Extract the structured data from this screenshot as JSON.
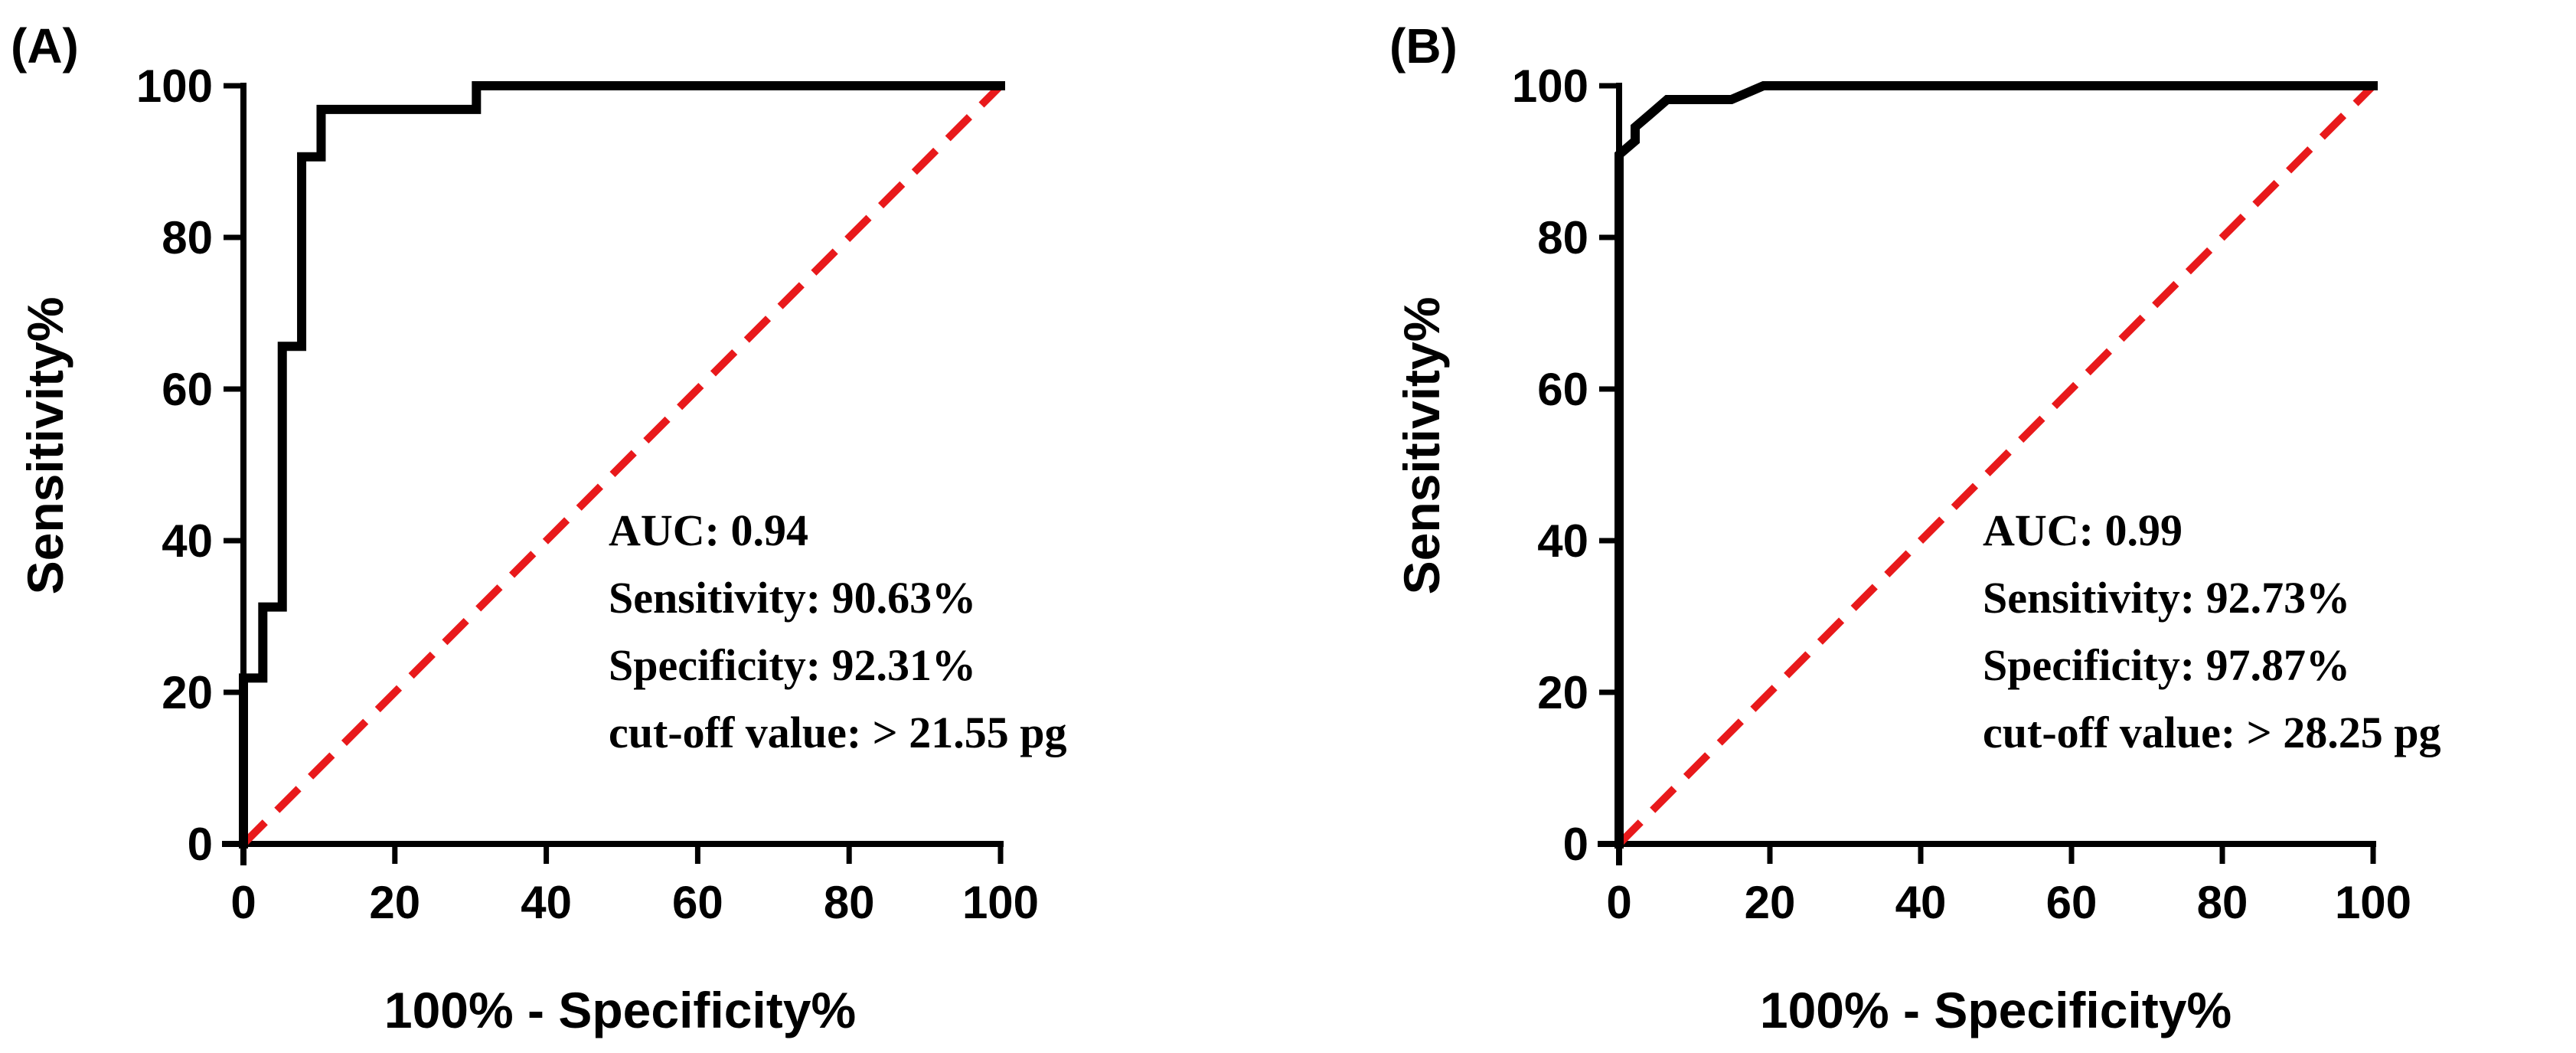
{
  "chart_data": [
    {
      "type": "line",
      "panel_label": "(A)",
      "xlabel": "100% - Specificity%",
      "ylabel": "Sensitivity%",
      "xlim": [
        0,
        100
      ],
      "ylim": [
        0,
        100
      ],
      "xticks": [
        0,
        20,
        40,
        60,
        80,
        100
      ],
      "yticks": [
        0,
        20,
        40,
        60,
        80,
        100
      ],
      "grid": false,
      "series": [
        {
          "name": "ROC curve",
          "color": "#000000",
          "style": "solid",
          "step": true,
          "x": [
            0,
            0,
            2.56,
            2.56,
            5.13,
            5.13,
            7.69,
            7.69,
            10.26,
            10.26,
            30.77,
            30.77,
            100
          ],
          "y": [
            0,
            21.88,
            21.88,
            31.25,
            31.25,
            65.63,
            65.63,
            90.63,
            90.63,
            96.88,
            96.88,
            100,
            100
          ]
        },
        {
          "name": "Reference line",
          "color": "#e8191b",
          "style": "dashed",
          "x": [
            0,
            100
          ],
          "y": [
            0,
            100
          ]
        }
      ],
      "annotations": [
        "AUC: 0.94",
        "Sensitivity: 90.63%",
        "Specificity: 92.31%",
        "cut-off value: > 21.55 pg"
      ]
    },
    {
      "type": "line",
      "panel_label": "(B)",
      "xlabel": "100% - Specificity%",
      "ylabel": "Sensitivity%",
      "xlim": [
        0,
        100
      ],
      "ylim": [
        0,
        100
      ],
      "xticks": [
        0,
        20,
        40,
        60,
        80,
        100
      ],
      "yticks": [
        0,
        20,
        40,
        60,
        80,
        100
      ],
      "grid": false,
      "series": [
        {
          "name": "ROC curve",
          "color": "#000000",
          "style": "solid",
          "step": false,
          "x": [
            0,
            0,
            2.13,
            2.13,
            4.26,
            4.26,
            6.38,
            6.38,
            14.89,
            19.15,
            100
          ],
          "y": [
            0,
            90.91,
            92.73,
            94.55,
            96.36,
            96.36,
            98.18,
            98.18,
            98.18,
            100,
            100
          ]
        },
        {
          "name": "Reference line",
          "color": "#e8191b",
          "style": "dashed",
          "x": [
            0,
            100
          ],
          "y": [
            0,
            100
          ]
        }
      ],
      "annotations": [
        "AUC: 0.99",
        "Sensitivity: 92.73%",
        "Specificity: 97.87%",
        "cut-off value: > 28.25 pg"
      ]
    }
  ]
}
